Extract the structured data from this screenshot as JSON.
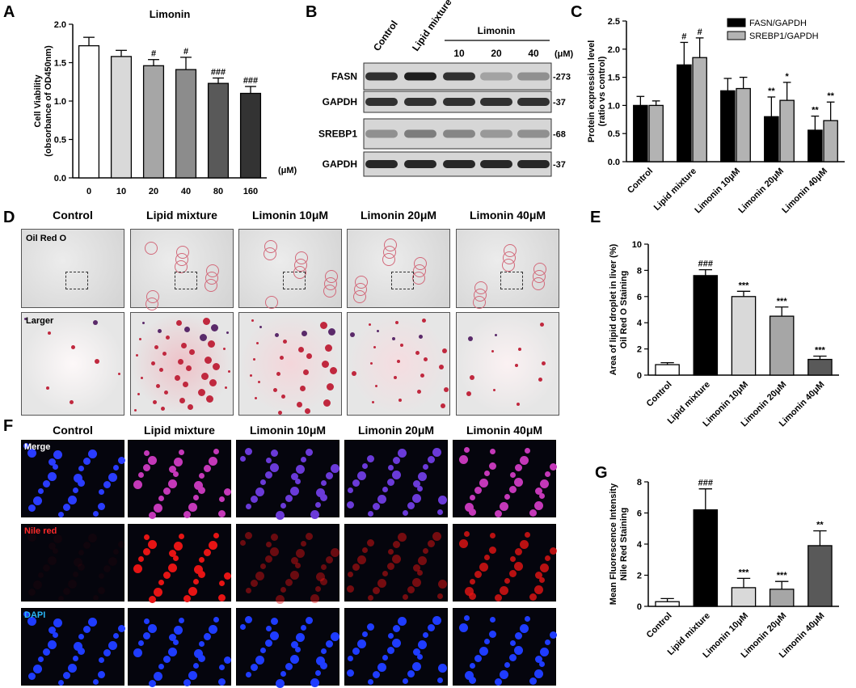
{
  "panels": {
    "A": {
      "letter": "A",
      "title": "Limonin",
      "unit": "(μM)",
      "ylabel_line1": "Cell Viability",
      "ylabel_line2": "(obsorbance of OD450nm)",
      "yticks": [
        "0.0",
        "0.5",
        "1.0",
        "1.5",
        "2.0"
      ],
      "ymax": 2.0,
      "categories": [
        "0",
        "10",
        "20",
        "40",
        "80",
        "160"
      ],
      "values": [
        1.72,
        1.58,
        1.46,
        1.41,
        1.23,
        1.1
      ],
      "errors": [
        0.11,
        0.08,
        0.08,
        0.16,
        0.07,
        0.09
      ],
      "marks": [
        "",
        "",
        "#",
        "#",
        "###",
        "###"
      ],
      "fills": [
        "#ffffff",
        "#d9d9d9",
        "#a6a6a6",
        "#8c8c8c",
        "#595959",
        "#333333"
      ]
    },
    "B": {
      "letter": "B",
      "headers": [
        "Control",
        "Lipid mixture"
      ],
      "limonin_label": "Limonin",
      "limonin_doses": [
        "10",
        "20",
        "40"
      ],
      "unit": "(μM)",
      "rows": [
        {
          "label": "FASN",
          "size": "-273",
          "intens": [
            0.85,
            0.95,
            0.85,
            0.25,
            0.35
          ]
        },
        {
          "label": "GAPDH",
          "size": "-37",
          "intens": [
            0.85,
            0.85,
            0.85,
            0.85,
            0.85
          ]
        },
        {
          "label": "SREBP1",
          "size": "-68",
          "intens": [
            0.35,
            0.45,
            0.4,
            0.3,
            0.35
          ]
        },
        {
          "label": "GAPDH",
          "size": "-37",
          "intens": [
            0.9,
            0.9,
            0.9,
            0.9,
            0.9
          ]
        }
      ]
    },
    "C": {
      "letter": "C",
      "ylabel_line1": "Protein expression level",
      "ylabel_line2": "(ratio vs control)",
      "yticks": [
        "0.0",
        "0.5",
        "1.0",
        "1.5",
        "2.0",
        "2.5"
      ],
      "ymax": 2.5,
      "categories": [
        "Control",
        "Lipid mixture",
        "Limonin 10μM",
        "Limonin 20μM",
        "Limonin 40μM"
      ],
      "series": [
        {
          "name": "FASN/GAPDH",
          "values": [
            1.0,
            1.72,
            1.26,
            0.8,
            0.56
          ],
          "errors": [
            0.16,
            0.4,
            0.22,
            0.35,
            0.25
          ],
          "marks": [
            "",
            "#",
            "",
            "**",
            "**"
          ],
          "color": "#000000"
        },
        {
          "name": "SREBP1/GAPDH",
          "values": [
            1.0,
            1.85,
            1.3,
            1.09,
            0.73
          ],
          "errors": [
            0.08,
            0.35,
            0.2,
            0.32,
            0.33
          ],
          "marks": [
            "",
            "#",
            "",
            "*",
            "**"
          ],
          "color": "#b3b3b3"
        }
      ]
    },
    "D": {
      "letter": "D",
      "columns": [
        "Control",
        "Lipid mixture",
        "Limonin 10μM",
        "Limonin 20μM",
        "Limonin 40μM"
      ],
      "row1_label": "Oil Red O",
      "row2_label": "Larger"
    },
    "E": {
      "letter": "E",
      "ylabel_line1": "Area of lipid droplet in liver  (%)",
      "ylabel_line2": "Oil Red O Staining",
      "yticks": [
        "0",
        "2",
        "4",
        "6",
        "8",
        "10"
      ],
      "ymax": 10,
      "categories": [
        "Control",
        "Lipid mixture",
        "Limonin 10μM",
        "Limonin 20μM",
        "Limonin 40μM"
      ],
      "values": [
        0.8,
        7.6,
        6.0,
        4.5,
        1.2
      ],
      "errors": [
        0.15,
        0.45,
        0.4,
        0.7,
        0.25
      ],
      "marks": [
        "",
        "###",
        "***",
        "***",
        "***"
      ],
      "fills": [
        "#ffffff",
        "#000000",
        "#d9d9d9",
        "#a6a6a6",
        "#595959"
      ]
    },
    "F": {
      "letter": "F",
      "columns": [
        "Control",
        "Lipid mixture",
        "Limonin 10μM",
        "Limonin 20μM",
        "Limonin 40μM"
      ],
      "rows": [
        "Merge",
        "Nile red",
        "DAPI"
      ]
    },
    "G": {
      "letter": "G",
      "ylabel_line1": "Mean Fluorescence Intensity",
      "ylabel_line2": "Nile Red Staining",
      "yticks": [
        "0",
        "2",
        "4",
        "6",
        "8"
      ],
      "ymax": 8,
      "categories": [
        "Control",
        "Lipid mixture",
        "Limonin 10μM",
        "Limonin 20μM",
        "Limonin 40μM"
      ],
      "values": [
        0.3,
        6.2,
        1.2,
        1.1,
        3.9
      ],
      "errors": [
        0.2,
        1.35,
        0.6,
        0.5,
        0.95
      ],
      "marks": [
        "",
        "###",
        "***",
        "***",
        "**"
      ],
      "fills": [
        "#ffffff",
        "#000000",
        "#d9d9d9",
        "#a6a6a6",
        "#595959"
      ]
    }
  },
  "chart_data": [
    {
      "type": "bar",
      "panel": "A",
      "title": "Limonin",
      "categories": [
        "0",
        "10",
        "20",
        "40",
        "80",
        "160"
      ],
      "values": [
        1.72,
        1.58,
        1.46,
        1.41,
        1.23,
        1.1
      ],
      "ylabel": "Cell Viability (obsorbance of OD450nm)",
      "xlabel": "(μM)",
      "ylim": [
        0,
        2.0
      ]
    },
    {
      "type": "bar",
      "panel": "C",
      "categories": [
        "Control",
        "Lipid mixture",
        "Limonin 10μM",
        "Limonin 20μM",
        "Limonin 40μM"
      ],
      "series": [
        {
          "name": "FASN/GAPDH",
          "values": [
            1.0,
            1.72,
            1.26,
            0.8,
            0.56
          ]
        },
        {
          "name": "SREBP1/GAPDH",
          "values": [
            1.0,
            1.85,
            1.3,
            1.09,
            0.73
          ]
        }
      ],
      "ylabel": "Protein expression level (ratio vs control)",
      "ylim": [
        0,
        2.5
      ],
      "legend": "top-right"
    },
    {
      "type": "bar",
      "panel": "E",
      "categories": [
        "Control",
        "Lipid mixture",
        "Limonin 10μM",
        "Limonin 20μM",
        "Limonin 40μM"
      ],
      "values": [
        0.8,
        7.6,
        6.0,
        4.5,
        1.2
      ],
      "ylabel": "Area of lipid droplet in liver (%) Oil Red O Staining",
      "ylim": [
        0,
        10
      ]
    },
    {
      "type": "bar",
      "panel": "G",
      "categories": [
        "Control",
        "Lipid mixture",
        "Limonin 10μM",
        "Limonin 20μM",
        "Limonin 40μM"
      ],
      "values": [
        0.3,
        6.2,
        1.2,
        1.1,
        3.9
      ],
      "ylabel": "Mean Fluorescence Intensity Nile Red Staining",
      "ylim": [
        0,
        8
      ]
    }
  ]
}
